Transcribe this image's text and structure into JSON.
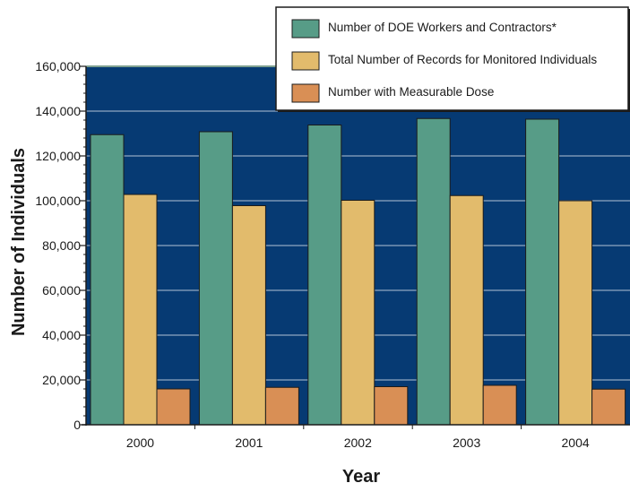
{
  "chart_data": {
    "type": "bar",
    "categories": [
      "2000",
      "2001",
      "2002",
      "2003",
      "2004"
    ],
    "series": [
      {
        "name": "Number of DOE Workers and Contractors*",
        "values": [
          129500,
          130800,
          133800,
          136700,
          136400
        ],
        "color": "#579c87"
      },
      {
        "name": "Total Number of Records for Monitored Individuals",
        "values": [
          102800,
          97800,
          100200,
          102300,
          100000
        ],
        "color": "#e2bb6c"
      },
      {
        "name": "Number with Measurable Dose",
        "values": [
          16000,
          16700,
          17000,
          17600,
          15900
        ],
        "color": "#d98f55"
      }
    ],
    "xlabel": "Year",
    "ylabel": "Number of Individuals",
    "ylim": [
      0,
      160000
    ],
    "yticks": [
      0,
      20000,
      40000,
      60000,
      80000,
      100000,
      120000,
      140000,
      160000
    ],
    "ytick_labels": [
      "0",
      "20,000",
      "40,000",
      "60,000",
      "80,000",
      "100,000",
      "120,000",
      "140,000",
      "160,000"
    ],
    "grid": true,
    "legend_position": "top-right",
    "plot_background": "#063a73",
    "grid_color": "#8fa6c2"
  }
}
